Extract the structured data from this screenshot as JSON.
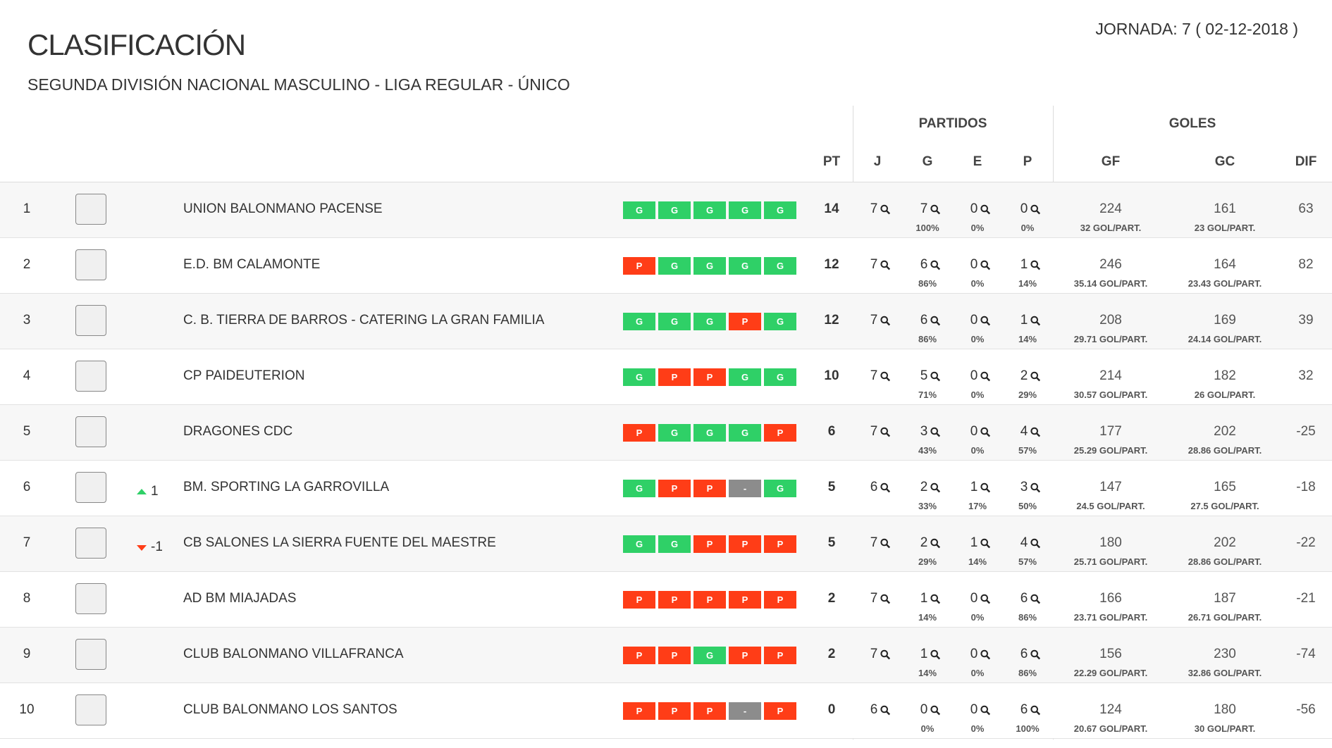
{
  "header": {
    "title": "CLASIFICACIÓN",
    "subtitle": "SEGUNDA DIVISIÓN NACIONAL MASCULINO - LIGA REGULAR - ÚNICO",
    "jornada": "JORNADA: 7 ( 02-12-2018 )"
  },
  "table": {
    "groups": {
      "partidos": "PARTIDOS",
      "goles": "GOLES"
    },
    "columns": {
      "pt": "PT",
      "j": "J",
      "g": "G",
      "e": "E",
      "p": "P",
      "gf": "GF",
      "gc": "GC",
      "dif": "DIF"
    },
    "form_colors": {
      "G": "#2fd067",
      "P": "#ff3d17",
      "-": "#8c8c8c"
    },
    "rows": [
      {
        "pos": 1,
        "team": "UNION BALONMANO PACENSE",
        "form": [
          "G",
          "G",
          "G",
          "G",
          "G"
        ],
        "pt": 14,
        "j": 7,
        "g": 7,
        "g_pct": "100%",
        "e": 0,
        "e_pct": "0%",
        "p": 0,
        "p_pct": "0%",
        "gf": 224,
        "gf_avg": "32 GOL/PART.",
        "gc": 161,
        "gc_avg": "23 GOL/PART.",
        "dif": 63
      },
      {
        "pos": 2,
        "team": "E.D. BM CALAMONTE",
        "form": [
          "P",
          "G",
          "G",
          "G",
          "G"
        ],
        "pt": 12,
        "j": 7,
        "g": 6,
        "g_pct": "86%",
        "e": 0,
        "e_pct": "0%",
        "p": 1,
        "p_pct": "14%",
        "gf": 246,
        "gf_avg": "35.14 GOL/PART.",
        "gc": 164,
        "gc_avg": "23.43 GOL/PART.",
        "dif": 82
      },
      {
        "pos": 3,
        "team": "C. B. TIERRA DE BARROS - CATERING LA GRAN FAMILIA",
        "form": [
          "G",
          "G",
          "G",
          "P",
          "G"
        ],
        "pt": 12,
        "j": 7,
        "g": 6,
        "g_pct": "86%",
        "e": 0,
        "e_pct": "0%",
        "p": 1,
        "p_pct": "14%",
        "gf": 208,
        "gf_avg": "29.71 GOL/PART.",
        "gc": 169,
        "gc_avg": "24.14 GOL/PART.",
        "dif": 39
      },
      {
        "pos": 4,
        "team": "CP PAIDEUTERION",
        "form": [
          "G",
          "P",
          "P",
          "G",
          "G"
        ],
        "pt": 10,
        "j": 7,
        "g": 5,
        "g_pct": "71%",
        "e": 0,
        "e_pct": "0%",
        "p": 2,
        "p_pct": "29%",
        "gf": 214,
        "gf_avg": "30.57 GOL/PART.",
        "gc": 182,
        "gc_avg": "26 GOL/PART.",
        "dif": 32
      },
      {
        "pos": 5,
        "team": "DRAGONES CDC",
        "form": [
          "P",
          "G",
          "G",
          "G",
          "P"
        ],
        "pt": 6,
        "j": 7,
        "g": 3,
        "g_pct": "43%",
        "e": 0,
        "e_pct": "0%",
        "p": 4,
        "p_pct": "57%",
        "gf": 177,
        "gf_avg": "25.29 GOL/PART.",
        "gc": 202,
        "gc_avg": "28.86 GOL/PART.",
        "dif": -25
      },
      {
        "pos": 6,
        "team": "BM. SPORTING LA GARROVILLA",
        "trend": 1,
        "form": [
          "G",
          "P",
          "P",
          "-",
          "G"
        ],
        "pt": 5,
        "j": 6,
        "g": 2,
        "g_pct": "33%",
        "e": 1,
        "e_pct": "17%",
        "p": 3,
        "p_pct": "50%",
        "gf": 147,
        "gf_avg": "24.5 GOL/PART.",
        "gc": 165,
        "gc_avg": "27.5 GOL/PART.",
        "dif": -18
      },
      {
        "pos": 7,
        "team": "CB SALONES LA SIERRA FUENTE DEL MAESTRE",
        "trend": -1,
        "form": [
          "G",
          "G",
          "P",
          "P",
          "P"
        ],
        "pt": 5,
        "j": 7,
        "g": 2,
        "g_pct": "29%",
        "e": 1,
        "e_pct": "14%",
        "p": 4,
        "p_pct": "57%",
        "gf": 180,
        "gf_avg": "25.71 GOL/PART.",
        "gc": 202,
        "gc_avg": "28.86 GOL/PART.",
        "dif": -22
      },
      {
        "pos": 8,
        "team": "AD BM MIAJADAS",
        "form": [
          "P",
          "P",
          "P",
          "P",
          "P"
        ],
        "pt": 2,
        "j": 7,
        "g": 1,
        "g_pct": "14%",
        "e": 0,
        "e_pct": "0%",
        "p": 6,
        "p_pct": "86%",
        "gf": 166,
        "gf_avg": "23.71 GOL/PART.",
        "gc": 187,
        "gc_avg": "26.71 GOL/PART.",
        "dif": -21
      },
      {
        "pos": 9,
        "team": "CLUB BALONMANO VILLAFRANCA",
        "form": [
          "P",
          "P",
          "G",
          "P",
          "P"
        ],
        "pt": 2,
        "j": 7,
        "g": 1,
        "g_pct": "14%",
        "e": 0,
        "e_pct": "0%",
        "p": 6,
        "p_pct": "86%",
        "gf": 156,
        "gf_avg": "22.29 GOL/PART.",
        "gc": 230,
        "gc_avg": "32.86 GOL/PART.",
        "dif": -74
      },
      {
        "pos": 10,
        "team": "CLUB BALONMANO LOS SANTOS",
        "form": [
          "P",
          "P",
          "P",
          "-",
          "P"
        ],
        "pt": 0,
        "j": 6,
        "g": 0,
        "g_pct": "0%",
        "e": 0,
        "e_pct": "0%",
        "p": 6,
        "p_pct": "100%",
        "gf": 124,
        "gf_avg": "20.67 GOL/PART.",
        "gc": 180,
        "gc_avg": "30 GOL/PART.",
        "dif": -56
      }
    ]
  }
}
